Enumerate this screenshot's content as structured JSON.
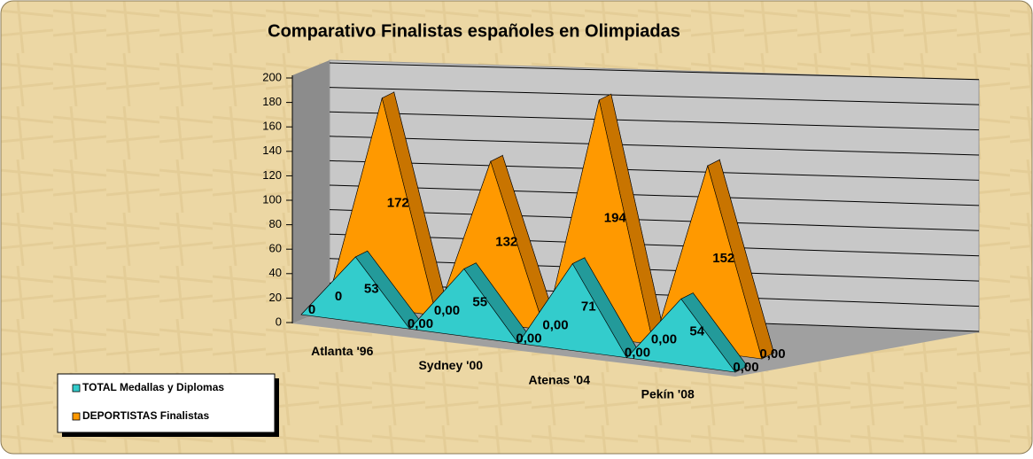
{
  "chart_data": {
    "type": "area3d",
    "title": "Comparativo Finalistas españoles en Olimpiadas",
    "categories": [
      null,
      "Atlanta '96",
      null,
      "Sydney '00",
      null,
      "Atenas '04",
      null,
      "Pekín '08",
      null
    ],
    "series": [
      {
        "name": "TOTAL Medallas y Diplomas",
        "color": "#33cccc",
        "values": [
          0,
          53,
          0,
          55,
          0,
          71,
          0,
          54,
          0
        ],
        "value_labels": [
          "0",
          "53",
          "0,00",
          "55",
          "0,00",
          "71",
          "0,00",
          "54",
          "0,00"
        ]
      },
      {
        "name": "DEPORTISTAS Finalistas",
        "color": "#ff9900",
        "values": [
          0,
          172,
          0,
          132,
          0,
          194,
          0,
          152,
          0
        ],
        "value_labels": [
          "0",
          "172",
          "0,00",
          "132",
          "0,00",
          "194",
          "0,00",
          "152",
          "0,00"
        ]
      }
    ],
    "ylim": [
      0,
      200
    ],
    "yticks": [
      0,
      20,
      40,
      60,
      80,
      100,
      120,
      140,
      160,
      180,
      200
    ],
    "grid": true,
    "legend": "bottom-left"
  }
}
